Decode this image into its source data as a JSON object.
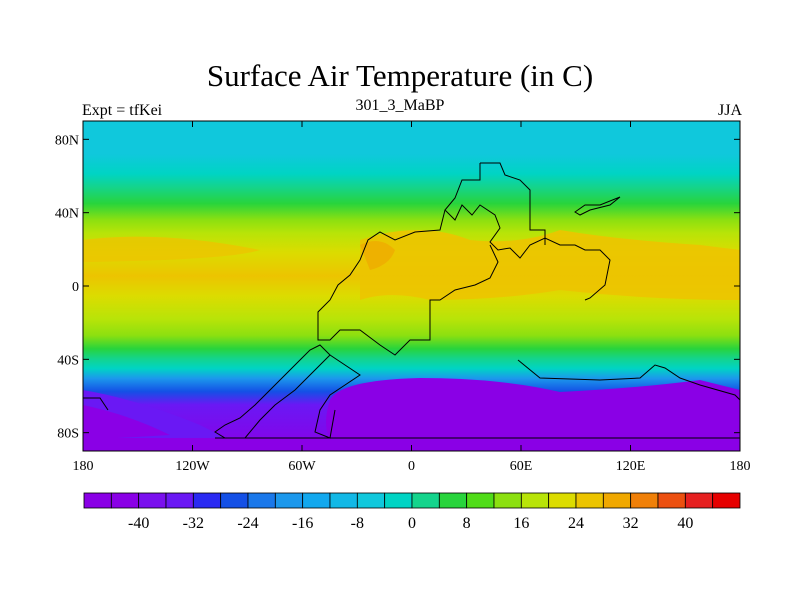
{
  "chart_data": {
    "type": "heatmap",
    "title": "Surface Air Temperature (in C)",
    "experiment_label": "Expt = tfKei",
    "subtitle": "301_3_MaBP",
    "season": "JJA",
    "xlim": [
      -180,
      180
    ],
    "ylim": [
      -90,
      90
    ],
    "x_ticks": [
      {
        "value": -180,
        "label": "180"
      },
      {
        "value": -120,
        "label": "120W"
      },
      {
        "value": -60,
        "label": "60W"
      },
      {
        "value": 0,
        "label": "0"
      },
      {
        "value": 60,
        "label": "60E"
      },
      {
        "value": 120,
        "label": "120E"
      },
      {
        "value": 180,
        "label": "180"
      }
    ],
    "y_ticks": [
      {
        "value": 80,
        "label": "80N"
      },
      {
        "value": 40,
        "label": "40N"
      },
      {
        "value": 0,
        "label": "0"
      },
      {
        "value": -40,
        "label": "40S"
      },
      {
        "value": -80,
        "label": "80S"
      }
    ],
    "colorbar": {
      "levels": [
        -44,
        -40,
        -36,
        -32,
        -28,
        -24,
        -20,
        -16,
        -12,
        -8,
        -4,
        0,
        4,
        8,
        12,
        16,
        20,
        24,
        28,
        32,
        36,
        40,
        44
      ],
      "labels": [
        "-40",
        "-32",
        "-24",
        "-16",
        "-8",
        "0",
        "8",
        "16",
        "24",
        "32",
        "40"
      ],
      "colors": [
        "#8a00e6",
        "#8a00e6",
        "#7a10ee",
        "#6a18f4",
        "#2a2af2",
        "#1450e6",
        "#1a78ea",
        "#1c98ec",
        "#12a8ee",
        "#12b8e6",
        "#10c8dc",
        "#00d4c4",
        "#14d48c",
        "#28d43c",
        "#50dc18",
        "#8ce010",
        "#b8e408",
        "#dcdc00",
        "#ecc400",
        "#f0a800",
        "#f08008",
        "#ec5010",
        "#e62020",
        "#e60000"
      ]
    }
  }
}
